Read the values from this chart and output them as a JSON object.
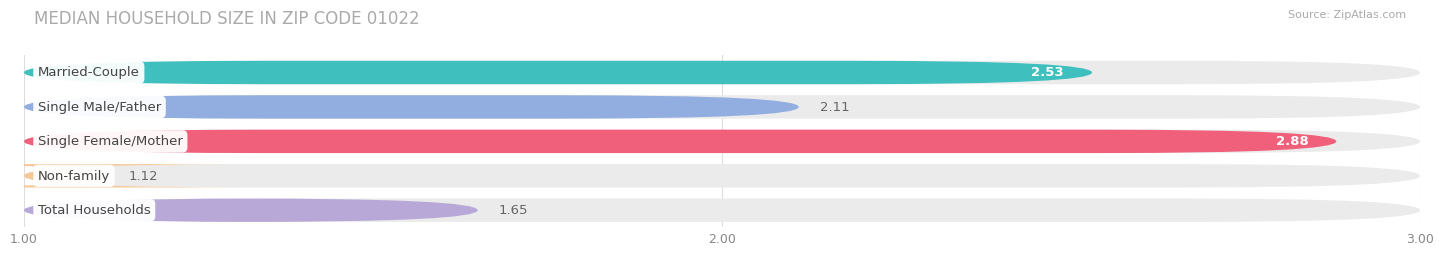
{
  "title": "MEDIAN HOUSEHOLD SIZE IN ZIP CODE 01022",
  "source": "Source: ZipAtlas.com",
  "categories": [
    "Married-Couple",
    "Single Male/Father",
    "Single Female/Mother",
    "Non-family",
    "Total Households"
  ],
  "values": [
    2.53,
    2.11,
    2.88,
    1.12,
    1.65
  ],
  "bar_colors": [
    "#40bfbf",
    "#92aee0",
    "#f0607a",
    "#f5c898",
    "#b8a8d8"
  ],
  "xlim": [
    1.0,
    3.0
  ],
  "xticks": [
    1.0,
    2.0,
    3.0
  ],
  "background_color": "#ffffff",
  "bar_bg_color": "#ebebeb",
  "title_fontsize": 12,
  "label_fontsize": 9.5,
  "value_fontsize": 9.5
}
